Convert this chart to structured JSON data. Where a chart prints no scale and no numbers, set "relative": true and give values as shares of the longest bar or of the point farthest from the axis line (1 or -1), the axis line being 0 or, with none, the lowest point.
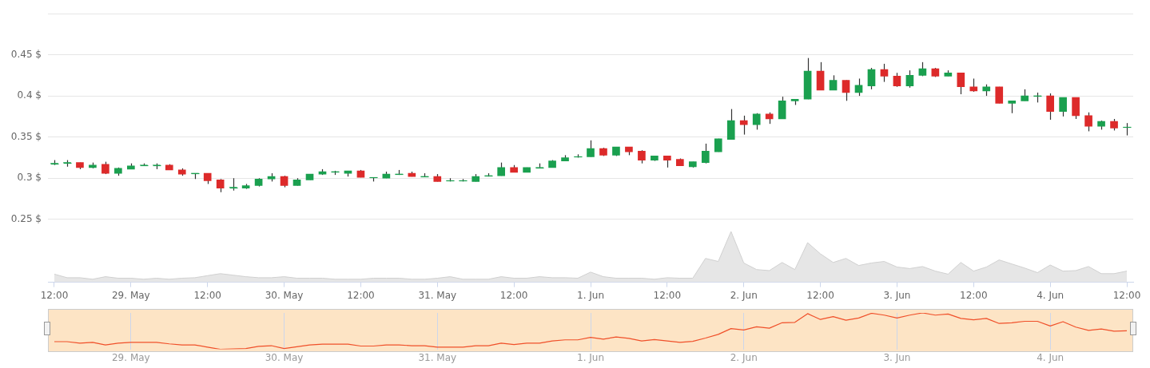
{
  "chart_data": [
    {
      "type": "candlestick",
      "categories": [
        null,
        null,
        null,
        null,
        null,
        null,
        null,
        null,
        null,
        null,
        null,
        null,
        null,
        null,
        null,
        null,
        null,
        null,
        null,
        null,
        null,
        null,
        null,
        null,
        null,
        null,
        null,
        null,
        null,
        null,
        null,
        null,
        null,
        null,
        null,
        null,
        null,
        null,
        null,
        null,
        null,
        null,
        null,
        null,
        null,
        null,
        null,
        null,
        null,
        null,
        null,
        null,
        null,
        null,
        null,
        null,
        null,
        null,
        null,
        null,
        null,
        null,
        null,
        null,
        null,
        null,
        null,
        null,
        null,
        null,
        null,
        null,
        null,
        null,
        null,
        null,
        null,
        null,
        null,
        null,
        null,
        null,
        null,
        null,
        null
      ],
      "ohlc": [
        [
          0.318,
          0.322,
          0.316,
          0.318
        ],
        [
          0.319,
          0.322,
          0.314,
          0.319
        ],
        [
          0.319,
          0.319,
          0.311,
          0.313
        ],
        [
          0.313,
          0.319,
          0.312,
          0.316
        ],
        [
          0.317,
          0.32,
          0.305,
          0.306
        ],
        [
          0.306,
          0.313,
          0.303,
          0.312
        ],
        [
          0.311,
          0.318,
          0.311,
          0.315
        ],
        [
          0.316,
          0.318,
          0.315,
          0.316
        ],
        [
          0.316,
          0.318,
          0.311,
          0.316
        ],
        [
          0.316,
          0.317,
          0.31,
          0.31
        ],
        [
          0.31,
          0.312,
          0.303,
          0.305
        ],
        [
          0.306,
          0.306,
          0.299,
          0.306
        ],
        [
          0.306,
          0.306,
          0.293,
          0.297
        ],
        [
          0.298,
          0.299,
          0.283,
          0.288
        ],
        [
          0.289,
          0.3,
          0.285,
          0.289
        ],
        [
          0.288,
          0.293,
          0.287,
          0.291
        ],
        [
          0.291,
          0.3,
          0.29,
          0.299
        ],
        [
          0.299,
          0.306,
          0.296,
          0.302
        ],
        [
          0.302,
          0.303,
          0.289,
          0.291
        ],
        [
          0.291,
          0.3,
          0.291,
          0.298
        ],
        [
          0.298,
          0.305,
          0.298,
          0.305
        ],
        [
          0.305,
          0.311,
          0.304,
          0.308
        ],
        [
          0.308,
          0.309,
          0.304,
          0.308
        ],
        [
          0.306,
          0.309,
          0.302,
          0.309
        ],
        [
          0.309,
          0.31,
          0.301,
          0.301
        ],
        [
          0.301,
          0.301,
          0.296,
          0.301
        ],
        [
          0.3,
          0.308,
          0.3,
          0.305
        ],
        [
          0.305,
          0.31,
          0.304,
          0.305
        ],
        [
          0.306,
          0.308,
          0.302,
          0.302
        ],
        [
          0.302,
          0.306,
          0.302,
          0.302
        ],
        [
          0.302,
          0.305,
          0.296,
          0.296
        ],
        [
          0.297,
          0.3,
          0.296,
          0.297
        ],
        [
          0.297,
          0.299,
          0.296,
          0.297
        ],
        [
          0.296,
          0.305,
          0.296,
          0.302
        ],
        [
          0.303,
          0.306,
          0.302,
          0.303
        ],
        [
          0.303,
          0.319,
          0.303,
          0.313
        ],
        [
          0.313,
          0.316,
          0.307,
          0.307
        ],
        [
          0.307,
          0.313,
          0.307,
          0.313
        ],
        [
          0.313,
          0.318,
          0.313,
          0.313
        ],
        [
          0.313,
          0.322,
          0.313,
          0.321
        ],
        [
          0.321,
          0.328,
          0.321,
          0.325
        ],
        [
          0.326,
          0.329,
          0.325,
          0.326
        ],
        [
          0.326,
          0.346,
          0.326,
          0.336
        ],
        [
          0.336,
          0.337,
          0.327,
          0.328
        ],
        [
          0.328,
          0.338,
          0.327,
          0.338
        ],
        [
          0.338,
          0.338,
          0.328,
          0.332
        ],
        [
          0.333,
          0.334,
          0.318,
          0.322
        ],
        [
          0.322,
          0.327,
          0.321,
          0.327
        ],
        [
          0.327,
          0.327,
          0.313,
          0.322
        ],
        [
          0.323,
          0.324,
          0.315,
          0.315
        ],
        [
          0.314,
          0.32,
          0.313,
          0.32
        ],
        [
          0.319,
          0.342,
          0.318,
          0.333
        ],
        [
          0.332,
          0.348,
          0.332,
          0.348
        ],
        [
          0.347,
          0.384,
          0.347,
          0.37
        ],
        [
          0.37,
          0.376,
          0.353,
          0.365
        ],
        [
          0.365,
          0.379,
          0.359,
          0.378
        ],
        [
          0.378,
          0.38,
          0.366,
          0.372
        ],
        [
          0.372,
          0.399,
          0.372,
          0.394
        ],
        [
          0.394,
          0.396,
          0.389,
          0.396
        ],
        [
          0.396,
          0.446,
          0.396,
          0.43
        ],
        [
          0.43,
          0.441,
          0.407,
          0.407
        ],
        [
          0.407,
          0.425,
          0.407,
          0.419
        ],
        [
          0.419,
          0.419,
          0.394,
          0.404
        ],
        [
          0.404,
          0.421,
          0.4,
          0.413
        ],
        [
          0.412,
          0.434,
          0.408,
          0.432
        ],
        [
          0.432,
          0.439,
          0.417,
          0.424
        ],
        [
          0.424,
          0.428,
          0.411,
          0.412
        ],
        [
          0.412,
          0.431,
          0.41,
          0.425
        ],
        [
          0.425,
          0.441,
          0.424,
          0.433
        ],
        [
          0.433,
          0.434,
          0.423,
          0.424
        ],
        [
          0.424,
          0.431,
          0.424,
          0.428
        ],
        [
          0.428,
          0.428,
          0.402,
          0.411
        ],
        [
          0.411,
          0.421,
          0.405,
          0.406
        ],
        [
          0.406,
          0.414,
          0.4,
          0.411
        ],
        [
          0.411,
          0.411,
          0.391,
          0.391
        ],
        [
          0.391,
          0.394,
          0.379,
          0.394
        ],
        [
          0.394,
          0.408,
          0.394,
          0.4
        ],
        [
          0.4,
          0.404,
          0.392,
          0.4
        ],
        [
          0.4,
          0.403,
          0.371,
          0.381
        ],
        [
          0.381,
          0.398,
          0.375,
          0.398
        ],
        [
          0.398,
          0.398,
          0.372,
          0.376
        ],
        [
          0.376,
          0.38,
          0.357,
          0.363
        ],
        [
          0.363,
          0.37,
          0.359,
          0.369
        ],
        [
          0.369,
          0.372,
          0.358,
          0.361
        ],
        [
          0.362,
          0.367,
          0.352,
          0.362
        ]
      ],
      "colors": [
        "#1aa04f",
        "#1aa04f",
        "#dd2a2a",
        "#1aa04f",
        "#dd2a2a",
        "#1aa04f",
        "#1aa04f",
        "#1aa04f",
        "#1aa04f",
        "#dd2a2a",
        "#dd2a2a",
        "#1aa04f",
        "#dd2a2a",
        "#dd2a2a",
        "#1aa04f",
        "#1aa04f",
        "#1aa04f",
        "#1aa04f",
        "#dd2a2a",
        "#1aa04f",
        "#1aa04f",
        "#1aa04f",
        "#1aa04f",
        "#1aa04f",
        "#dd2a2a",
        "#1aa04f",
        "#1aa04f",
        "#1aa04f",
        "#dd2a2a",
        "#1aa04f",
        "#dd2a2a",
        "#1aa04f",
        "#1aa04f",
        "#1aa04f",
        "#1aa04f",
        "#1aa04f",
        "#dd2a2a",
        "#1aa04f",
        "#1aa04f",
        "#1aa04f",
        "#1aa04f",
        "#1aa04f",
        "#1aa04f",
        "#dd2a2a",
        "#1aa04f",
        "#dd2a2a",
        "#dd2a2a",
        "#1aa04f",
        "#dd2a2a",
        "#dd2a2a",
        "#1aa04f",
        "#1aa04f",
        "#1aa04f",
        "#1aa04f",
        "#dd2a2a",
        "#1aa04f",
        "#dd2a2a",
        "#1aa04f",
        "#1aa04f",
        "#1aa04f",
        "#dd2a2a",
        "#1aa04f",
        "#dd2a2a",
        "#1aa04f",
        "#1aa04f",
        "#dd2a2a",
        "#dd2a2a",
        "#1aa04f",
        "#1aa04f",
        "#dd2a2a",
        "#1aa04f",
        "#dd2a2a",
        "#dd2a2a",
        "#1aa04f",
        "#dd2a2a",
        "#1aa04f",
        "#1aa04f",
        "#1aa04f",
        "#dd2a2a",
        "#1aa04f",
        "#dd2a2a",
        "#dd2a2a",
        "#1aa04f",
        "#dd2a2a",
        "#1aa04f"
      ],
      "ylim": [
        0.25,
        0.5
      ],
      "yticks": [
        {
          "value": 0.25,
          "label": "0.25 $"
        },
        {
          "value": 0.3,
          "label": "0.3 $"
        },
        {
          "value": 0.35,
          "label": "0.35 $"
        },
        {
          "value": 0.4,
          "label": "0.4 $"
        },
        {
          "value": 0.45,
          "label": "0.45 $"
        },
        {
          "value": 0.5,
          "label": null
        }
      ],
      "tick_labels": "y",
      "grid": "y"
    },
    {
      "type": "area",
      "relative": true,
      "color": "#e6e6e6",
      "categories": [
        "12:00",
        null,
        null,
        null,
        null,
        null,
        "29. May",
        null,
        null,
        null,
        null,
        null,
        "12:00",
        null,
        null,
        null,
        null,
        null,
        "30. May",
        null,
        null,
        null,
        null,
        null,
        "12:00",
        null,
        null,
        null,
        null,
        null,
        "31. May",
        null,
        null,
        null,
        null,
        null,
        "12:00",
        null,
        null,
        null,
        null,
        null,
        "1. Jun",
        null,
        null,
        null,
        null,
        null,
        "12:00",
        null,
        null,
        null,
        null,
        null,
        "2. Jun",
        null,
        null,
        null,
        null,
        null,
        "12:00",
        null,
        null,
        null,
        null,
        null,
        "3. Jun",
        null,
        null,
        null,
        null,
        null,
        "12:00",
        null,
        null,
        null,
        null,
        null,
        "4. Jun",
        null,
        null,
        null,
        null,
        null,
        "12:00"
      ],
      "values": [
        0.16,
        0.09,
        0.09,
        0.06,
        0.11,
        0.08,
        0.08,
        0.06,
        0.08,
        0.06,
        0.08,
        0.09,
        0.13,
        0.17,
        0.14,
        0.11,
        0.09,
        0.09,
        0.11,
        0.08,
        0.08,
        0.08,
        0.06,
        0.06,
        0.06,
        0.08,
        0.08,
        0.08,
        0.06,
        0.06,
        0.08,
        0.11,
        0.06,
        0.06,
        0.06,
        0.11,
        0.08,
        0.08,
        0.11,
        0.09,
        0.09,
        0.08,
        0.2,
        0.11,
        0.08,
        0.08,
        0.08,
        0.06,
        0.09,
        0.08,
        0.08,
        0.47,
        0.41,
        1,
        0.38,
        0.25,
        0.23,
        0.39,
        0.25,
        0.78,
        0.56,
        0.39,
        0.47,
        0.33,
        0.38,
        0.41,
        0.3,
        0.27,
        0.31,
        0.22,
        0.16,
        0.39,
        0.22,
        0.3,
        0.44,
        0.36,
        0.28,
        0.19,
        0.34,
        0.22,
        0.23,
        0.31,
        0.17,
        0.17,
        0.22
      ]
    },
    {
      "type": "line",
      "relative": true,
      "color": "#f0502a",
      "categories": [
        null,
        null,
        null,
        null,
        null,
        null,
        "29. May",
        null,
        null,
        null,
        null,
        null,
        null,
        null,
        null,
        null,
        null,
        null,
        "30. May",
        null,
        null,
        null,
        null,
        null,
        null,
        null,
        null,
        null,
        null,
        null,
        "31. May",
        null,
        null,
        null,
        null,
        null,
        null,
        null,
        null,
        null,
        null,
        null,
        "1. Jun",
        null,
        null,
        null,
        null,
        null,
        null,
        null,
        null,
        null,
        null,
        null,
        "2. Jun",
        null,
        null,
        null,
        null,
        null,
        null,
        null,
        null,
        null,
        null,
        null,
        "3. Jun",
        null,
        null,
        null,
        null,
        null,
        null,
        null,
        null,
        null,
        null,
        null,
        "4. Jun",
        null,
        null,
        null,
        null,
        null,
        null
      ],
      "values": [
        0.21,
        0.21,
        0.17,
        0.19,
        0.12,
        0.17,
        0.19,
        0.19,
        0.19,
        0.15,
        0.12,
        0.12,
        0.06,
        0,
        0.01,
        0.02,
        0.08,
        0.1,
        0.02,
        0.07,
        0.12,
        0.14,
        0.14,
        0.14,
        0.09,
        0.09,
        0.12,
        0.12,
        0.1,
        0.1,
        0.06,
        0.06,
        0.06,
        0.1,
        0.1,
        0.17,
        0.13,
        0.17,
        0.17,
        0.23,
        0.26,
        0.26,
        0.33,
        0.28,
        0.34,
        0.3,
        0.23,
        0.27,
        0.23,
        0.19,
        0.22,
        0.31,
        0.41,
        0.57,
        0.53,
        0.62,
        0.58,
        0.73,
        0.74,
        0.98,
        0.82,
        0.9,
        0.8,
        0.86,
        0.99,
        0.94,
        0.86,
        0.94,
        1,
        0.94,
        0.97,
        0.85,
        0.81,
        0.85,
        0.71,
        0.73,
        0.77,
        0.77,
        0.64,
        0.76,
        0.61,
        0.52,
        0.56,
        0.5,
        0.51
      ],
      "grid": "x"
    }
  ]
}
